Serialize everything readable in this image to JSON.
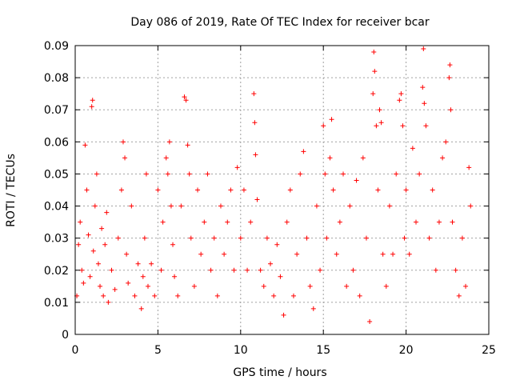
{
  "chart_data": {
    "type": "scatter",
    "title": "Day 086 of 2019, Rate Of TEC Index for receiver bcar",
    "xlabel": "GPS time / hours",
    "ylabel": "ROTI / TECUs",
    "xlim": [
      0,
      25
    ],
    "ylim": [
      0,
      0.09
    ],
    "x_ticks": [
      "0",
      "5",
      "10",
      "15",
      "20",
      "25"
    ],
    "y_ticks": [
      "0",
      "0.01",
      "0.02",
      "0.03",
      "0.04",
      "0.05",
      "0.06",
      "0.07",
      "0.08",
      "0.09"
    ],
    "grid": true,
    "marker": "plus",
    "color": "#ff0000",
    "points": [
      [
        0.1,
        0.012
      ],
      [
        0.2,
        0.028
      ],
      [
        0.3,
        0.035
      ],
      [
        0.4,
        0.02
      ],
      [
        0.5,
        0.016
      ],
      [
        0.6,
        0.059
      ],
      [
        0.7,
        0.045
      ],
      [
        0.8,
        0.031
      ],
      [
        0.9,
        0.018
      ],
      [
        1.0,
        0.071
      ],
      [
        1.05,
        0.073
      ],
      [
        1.1,
        0.026
      ],
      [
        1.2,
        0.04
      ],
      [
        1.3,
        0.05
      ],
      [
        1.4,
        0.022
      ],
      [
        1.5,
        0.015
      ],
      [
        1.6,
        0.033
      ],
      [
        1.7,
        0.012
      ],
      [
        1.8,
        0.028
      ],
      [
        1.9,
        0.038
      ],
      [
        2.0,
        0.01
      ],
      [
        2.2,
        0.02
      ],
      [
        2.4,
        0.014
      ],
      [
        2.6,
        0.03
      ],
      [
        2.8,
        0.045
      ],
      [
        2.9,
        0.06
      ],
      [
        3.0,
        0.055
      ],
      [
        3.1,
        0.025
      ],
      [
        3.2,
        0.016
      ],
      [
        3.4,
        0.04
      ],
      [
        3.6,
        0.012
      ],
      [
        3.8,
        0.022
      ],
      [
        4.0,
        0.008
      ],
      [
        4.1,
        0.018
      ],
      [
        4.2,
        0.03
      ],
      [
        4.3,
        0.05
      ],
      [
        4.4,
        0.015
      ],
      [
        4.6,
        0.022
      ],
      [
        4.8,
        0.012
      ],
      [
        5.0,
        0.045
      ],
      [
        5.2,
        0.02
      ],
      [
        5.3,
        0.035
      ],
      [
        5.5,
        0.055
      ],
      [
        5.6,
        0.05
      ],
      [
        5.7,
        0.06
      ],
      [
        5.8,
        0.04
      ],
      [
        5.9,
        0.028
      ],
      [
        6.0,
        0.018
      ],
      [
        6.2,
        0.012
      ],
      [
        6.4,
        0.04
      ],
      [
        6.6,
        0.074
      ],
      [
        6.7,
        0.073
      ],
      [
        6.8,
        0.059
      ],
      [
        6.9,
        0.05
      ],
      [
        7.0,
        0.03
      ],
      [
        7.2,
        0.015
      ],
      [
        7.4,
        0.045
      ],
      [
        7.6,
        0.025
      ],
      [
        7.8,
        0.035
      ],
      [
        8.0,
        0.05
      ],
      [
        8.2,
        0.02
      ],
      [
        8.4,
        0.03
      ],
      [
        8.6,
        0.012
      ],
      [
        8.8,
        0.04
      ],
      [
        9.0,
        0.025
      ],
      [
        9.2,
        0.035
      ],
      [
        9.4,
        0.045
      ],
      [
        9.6,
        0.02
      ],
      [
        9.8,
        0.052
      ],
      [
        10.0,
        0.03
      ],
      [
        10.2,
        0.045
      ],
      [
        10.4,
        0.02
      ],
      [
        10.6,
        0.035
      ],
      [
        10.8,
        0.075
      ],
      [
        10.85,
        0.066
      ],
      [
        10.9,
        0.056
      ],
      [
        11.0,
        0.042
      ],
      [
        11.2,
        0.02
      ],
      [
        11.4,
        0.015
      ],
      [
        11.6,
        0.03
      ],
      [
        11.8,
        0.022
      ],
      [
        12.0,
        0.012
      ],
      [
        12.2,
        0.028
      ],
      [
        12.4,
        0.018
      ],
      [
        12.6,
        0.006
      ],
      [
        12.8,
        0.035
      ],
      [
        13.0,
        0.045
      ],
      [
        13.2,
        0.012
      ],
      [
        13.4,
        0.025
      ],
      [
        13.6,
        0.05
      ],
      [
        13.8,
        0.057
      ],
      [
        14.0,
        0.03
      ],
      [
        14.2,
        0.015
      ],
      [
        14.4,
        0.008
      ],
      [
        14.6,
        0.04
      ],
      [
        14.8,
        0.02
      ],
      [
        15.0,
        0.065
      ],
      [
        15.1,
        0.05
      ],
      [
        15.2,
        0.03
      ],
      [
        15.4,
        0.055
      ],
      [
        15.5,
        0.067
      ],
      [
        15.6,
        0.045
      ],
      [
        15.8,
        0.025
      ],
      [
        16.0,
        0.035
      ],
      [
        16.2,
        0.05
      ],
      [
        16.4,
        0.015
      ],
      [
        16.6,
        0.04
      ],
      [
        16.8,
        0.02
      ],
      [
        17.0,
        0.048
      ],
      [
        17.2,
        0.012
      ],
      [
        17.4,
        0.055
      ],
      [
        17.6,
        0.03
      ],
      [
        17.8,
        0.004
      ],
      [
        18.0,
        0.075
      ],
      [
        18.05,
        0.088
      ],
      [
        18.1,
        0.082
      ],
      [
        18.2,
        0.065
      ],
      [
        18.3,
        0.045
      ],
      [
        18.4,
        0.07
      ],
      [
        18.5,
        0.066
      ],
      [
        18.6,
        0.025
      ],
      [
        18.8,
        0.015
      ],
      [
        19.0,
        0.04
      ],
      [
        19.2,
        0.025
      ],
      [
        19.4,
        0.05
      ],
      [
        19.6,
        0.073
      ],
      [
        19.7,
        0.075
      ],
      [
        19.8,
        0.065
      ],
      [
        19.9,
        0.03
      ],
      [
        20.0,
        0.045
      ],
      [
        20.2,
        0.025
      ],
      [
        20.4,
        0.058
      ],
      [
        20.6,
        0.035
      ],
      [
        20.8,
        0.05
      ],
      [
        21.0,
        0.077
      ],
      [
        21.05,
        0.089
      ],
      [
        21.1,
        0.072
      ],
      [
        21.2,
        0.065
      ],
      [
        21.4,
        0.03
      ],
      [
        21.6,
        0.045
      ],
      [
        21.8,
        0.02
      ],
      [
        22.0,
        0.035
      ],
      [
        22.2,
        0.055
      ],
      [
        22.4,
        0.06
      ],
      [
        22.6,
        0.08
      ],
      [
        22.65,
        0.084
      ],
      [
        22.7,
        0.07
      ],
      [
        22.8,
        0.035
      ],
      [
        23.0,
        0.02
      ],
      [
        23.2,
        0.012
      ],
      [
        23.4,
        0.03
      ],
      [
        23.6,
        0.015
      ],
      [
        23.8,
        0.052
      ],
      [
        23.9,
        0.04
      ]
    ]
  }
}
